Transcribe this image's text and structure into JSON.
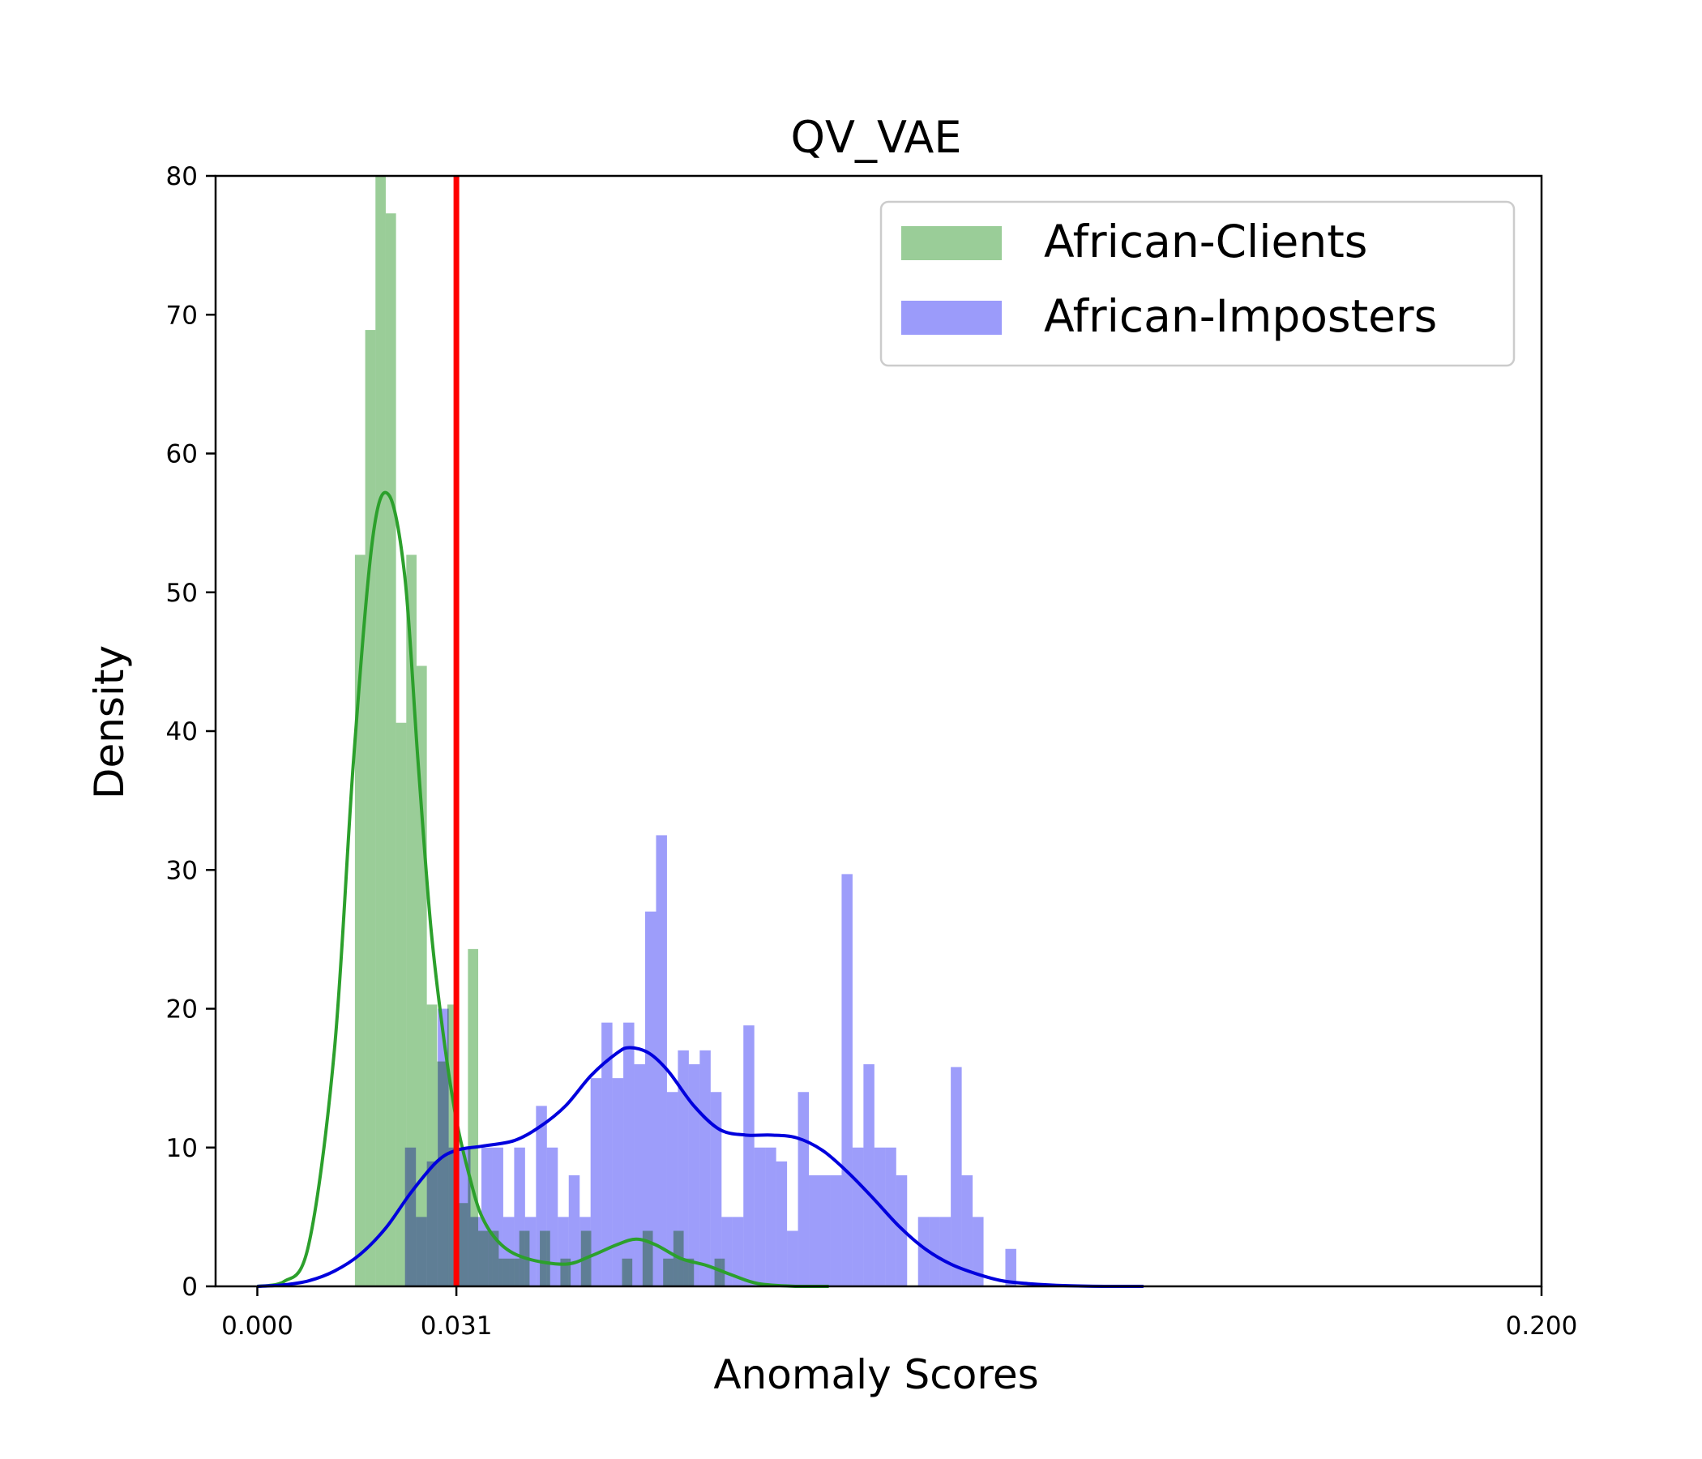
{
  "chart_data": {
    "type": "bar",
    "title": "QV_VAE",
    "xlabel": "Anomaly Scores",
    "ylabel": "Density",
    "xlim": [
      -0.0065,
      0.2
    ],
    "ylim": [
      0,
      80
    ],
    "x_ticks": [
      {
        "value": 0.0,
        "label": "0.000"
      },
      {
        "value": 0.031,
        "label": "0.031"
      },
      {
        "value": 0.2,
        "label": "0.200"
      }
    ],
    "y_ticks": [
      0,
      10,
      20,
      30,
      40,
      50,
      60,
      70,
      80
    ],
    "threshold": {
      "value": 0.031,
      "color": "#ff0000"
    },
    "legend": {
      "placement": "top-right"
    },
    "series": [
      {
        "name": "African-Clients",
        "color": "#2ca02c",
        "fill_color": "#9acd98",
        "bin_width": 0.0016,
        "bins": [
          [
            0.0152,
            52.7
          ],
          [
            0.0168,
            68.9
          ],
          [
            0.0184,
            80.0
          ],
          [
            0.02,
            77.3
          ],
          [
            0.0216,
            40.6
          ],
          [
            0.0232,
            52.7
          ],
          [
            0.0248,
            44.7
          ],
          [
            0.0264,
            20.3
          ],
          [
            0.028,
            16.2
          ],
          [
            0.0296,
            20.3
          ],
          [
            0.0312,
            6.0
          ],
          [
            0.0328,
            24.3
          ],
          [
            0.0344,
            4.0
          ],
          [
            0.036,
            4.0
          ],
          [
            0.0376,
            2.0
          ],
          [
            0.0392,
            2.0
          ],
          [
            0.0408,
            4.0
          ],
          [
            0.044,
            4.0
          ],
          [
            0.0472,
            2.0
          ],
          [
            0.0504,
            4.0
          ],
          [
            0.0568,
            2.0
          ],
          [
            0.06,
            4.0
          ],
          [
            0.0632,
            2.0
          ],
          [
            0.0648,
            4.0
          ],
          [
            0.0664,
            2.0
          ],
          [
            0.0712,
            2.0
          ]
        ],
        "kde": [
          [
            0.0,
            0.0
          ],
          [
            0.004,
            0.3
          ],
          [
            0.008,
            3.0
          ],
          [
            0.012,
            17.0
          ],
          [
            0.015,
            38.0
          ],
          [
            0.018,
            54.0
          ],
          [
            0.0205,
            57.0
          ],
          [
            0.023,
            51.0
          ],
          [
            0.025,
            38.0
          ],
          [
            0.027,
            26.0
          ],
          [
            0.029,
            18.0
          ],
          [
            0.031,
            12.0
          ],
          [
            0.033,
            8.0
          ],
          [
            0.035,
            5.0
          ],
          [
            0.038,
            3.0
          ],
          [
            0.042,
            2.0
          ],
          [
            0.048,
            1.6
          ],
          [
            0.052,
            2.2
          ],
          [
            0.056,
            3.0
          ],
          [
            0.059,
            3.4
          ],
          [
            0.062,
            3.0
          ],
          [
            0.066,
            2.0
          ],
          [
            0.07,
            1.5
          ],
          [
            0.074,
            0.8
          ],
          [
            0.078,
            0.2
          ],
          [
            0.084,
            0.0
          ],
          [
            0.089,
            0.0
          ]
        ]
      },
      {
        "name": "African-Imposters",
        "color": "#0000dd",
        "fill_color": "#9b9bfa",
        "bin_width": 0.0017,
        "bins": [
          [
            0.023,
            10.0
          ],
          [
            0.0247,
            5.0
          ],
          [
            0.0264,
            9.0
          ],
          [
            0.0281,
            20.0
          ],
          [
            0.0298,
            10.0
          ],
          [
            0.0315,
            10.0
          ],
          [
            0.0332,
            5.0
          ],
          [
            0.0349,
            10.0
          ],
          [
            0.0366,
            10.0
          ],
          [
            0.0383,
            5.0
          ],
          [
            0.04,
            10.0
          ],
          [
            0.0417,
            5.0
          ],
          [
            0.0434,
            13.0
          ],
          [
            0.0451,
            10.0
          ],
          [
            0.0468,
            5.0
          ],
          [
            0.0485,
            8.0
          ],
          [
            0.0502,
            5.0
          ],
          [
            0.0519,
            15.0
          ],
          [
            0.0536,
            19.0
          ],
          [
            0.0553,
            15.0
          ],
          [
            0.057,
            19.0
          ],
          [
            0.0587,
            16.0
          ],
          [
            0.0604,
            27.0
          ],
          [
            0.0621,
            32.5
          ],
          [
            0.0638,
            14.0
          ],
          [
            0.0655,
            17.0
          ],
          [
            0.0672,
            16.0
          ],
          [
            0.0689,
            17.0
          ],
          [
            0.0706,
            14.0
          ],
          [
            0.0723,
            5.0
          ],
          [
            0.074,
            5.0
          ],
          [
            0.0757,
            18.8
          ],
          [
            0.0774,
            10.0
          ],
          [
            0.0791,
            10.0
          ],
          [
            0.0808,
            9.0
          ],
          [
            0.0825,
            4.0
          ],
          [
            0.0842,
            14.0
          ],
          [
            0.0859,
            8.0
          ],
          [
            0.0876,
            8.0
          ],
          [
            0.0893,
            8.0
          ],
          [
            0.091,
            29.7
          ],
          [
            0.0927,
            10.0
          ],
          [
            0.0944,
            16.0
          ],
          [
            0.0961,
            10.0
          ],
          [
            0.0978,
            10.0
          ],
          [
            0.0995,
            8.0
          ],
          [
            0.1029,
            5.0
          ],
          [
            0.1046,
            5.0
          ],
          [
            0.1063,
            5.0
          ],
          [
            0.108,
            15.8
          ],
          [
            0.1097,
            8.0
          ],
          [
            0.1114,
            5.0
          ],
          [
            0.1131,
            0.0
          ],
          [
            0.1165,
            2.7
          ]
        ],
        "kde": [
          [
            0.0,
            0.0
          ],
          [
            0.004,
            0.1
          ],
          [
            0.008,
            0.4
          ],
          [
            0.012,
            1.1
          ],
          [
            0.016,
            2.3
          ],
          [
            0.02,
            4.2
          ],
          [
            0.024,
            6.8
          ],
          [
            0.028,
            9.0
          ],
          [
            0.031,
            9.8
          ],
          [
            0.035,
            10.1
          ],
          [
            0.04,
            10.5
          ],
          [
            0.044,
            11.5
          ],
          [
            0.048,
            13.0
          ],
          [
            0.052,
            15.2
          ],
          [
            0.056,
            16.8
          ],
          [
            0.058,
            17.2
          ],
          [
            0.061,
            16.8
          ],
          [
            0.064,
            15.5
          ],
          [
            0.068,
            13.0
          ],
          [
            0.072,
            11.3
          ],
          [
            0.076,
            10.9
          ],
          [
            0.08,
            10.9
          ],
          [
            0.084,
            10.7
          ],
          [
            0.088,
            9.8
          ],
          [
            0.092,
            8.2
          ],
          [
            0.096,
            6.3
          ],
          [
            0.1,
            4.3
          ],
          [
            0.104,
            2.7
          ],
          [
            0.108,
            1.6
          ],
          [
            0.112,
            0.9
          ],
          [
            0.116,
            0.4
          ],
          [
            0.12,
            0.2
          ],
          [
            0.126,
            0.05
          ],
          [
            0.132,
            0.0
          ],
          [
            0.138,
            0.0
          ]
        ]
      }
    ]
  }
}
